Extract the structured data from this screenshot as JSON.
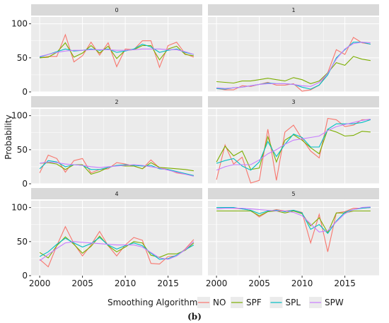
{
  "chart_data": {
    "type": "line",
    "ylabel": "Probability",
    "xlabel": "",
    "ylim": [
      0,
      110
    ],
    "xlim": [
      1999,
      2019
    ],
    "grid": true,
    "legend_position": "bottom",
    "legend_title": "Smoothing Algorithm",
    "caption": "(b)",
    "x_ticks": [
      2000,
      2005,
      2010,
      2015
    ],
    "y_ticks": [
      0,
      50,
      100
    ],
    "x": [
      2000,
      2001,
      2002,
      2003,
      2004,
      2005,
      2006,
      2007,
      2008,
      2009,
      2010,
      2011,
      2012,
      2013,
      2014,
      2015,
      2016,
      2017,
      2018
    ],
    "colors": {
      "NO": "#F8766D",
      "SPF": "#7CAE00",
      "SPL": "#00BFC4",
      "SPW": "#C77CFF"
    },
    "series_names": [
      "NO",
      "SPF",
      "SPL",
      "SPW"
    ],
    "panels": [
      {
        "label": "0",
        "series": [
          {
            "name": "NO",
            "values": [
              50,
              52,
              52,
              84,
              44,
              53,
              73,
              54,
              72,
              37,
              63,
              62,
              75,
              75,
              36,
              68,
              73,
              56,
              51
            ]
          },
          {
            "name": "SPF",
            "values": [
              50,
              51,
              58,
              72,
              51,
              57,
              68,
              57,
              67,
              49,
              61,
              62,
              68,
              68,
              47,
              63,
              67,
              55,
              53
            ]
          },
          {
            "name": "SPL",
            "values": [
              51,
              55,
              59,
              63,
              60,
              61,
              63,
              61,
              63,
              58,
              60,
              63,
              70,
              66,
              58,
              61,
              63,
              58,
              55
            ]
          },
          {
            "name": "SPW",
            "values": [
              52,
              55,
              58,
              60,
              61,
              61,
              62,
              62,
              62,
              61,
              61,
              62,
              63,
              63,
              63,
              62,
              62,
              59,
              55
            ]
          }
        ]
      },
      {
        "label": "1",
        "series": [
          {
            "name": "NO",
            "values": [
              5,
              3,
              3,
              9,
              8,
              11,
              14,
              10,
              10,
              12,
              1,
              3,
              10,
              28,
              62,
              55,
              80,
              72,
              70
            ]
          },
          {
            "name": "SPF",
            "values": [
              15,
              14,
              13,
              16,
              16,
              18,
              20,
              18,
              16,
              21,
              18,
              12,
              16,
              28,
              43,
              39,
              52,
              48,
              46
            ]
          },
          {
            "name": "SPL",
            "values": [
              5,
              4,
              6,
              7,
              9,
              11,
              13,
              12,
              12,
              11,
              7,
              4,
              10,
              25,
              50,
              62,
              73,
              73,
              70
            ]
          },
          {
            "name": "SPW",
            "values": [
              6,
              5,
              6,
              7,
              9,
              11,
              12,
              12,
              12,
              11,
              9,
              8,
              14,
              27,
              48,
              63,
              71,
              73,
              72
            ]
          }
        ]
      },
      {
        "label": "2",
        "series": [
          {
            "name": "NO",
            "values": [
              16,
              42,
              37,
              17,
              34,
              37,
              16,
              21,
              22,
              31,
              29,
              26,
              22,
              35,
              23,
              21,
              16,
              14,
              12
            ]
          },
          {
            "name": "SPF",
            "values": [
              30,
              31,
              29,
              21,
              28,
              28,
              14,
              18,
              24,
              27,
              26,
              26,
              22,
              31,
              24,
              23,
              22,
              21,
              19
            ]
          },
          {
            "name": "SPL",
            "values": [
              22,
              34,
              32,
              25,
              28,
              27,
              21,
              21,
              24,
              27,
              28,
              27,
              26,
              27,
              22,
              21,
              18,
              15,
              12
            ]
          },
          {
            "name": "SPW",
            "values": [
              30,
              32,
              31,
              29,
              28,
              27,
              25,
              24,
              25,
              26,
              27,
              28,
              27,
              25,
              23,
              20,
              17,
              14,
              11
            ]
          }
        ]
      },
      {
        "label": "3",
        "series": [
          {
            "name": "NO",
            "values": [
              6,
              57,
              29,
              39,
              1,
              5,
              80,
              5,
              76,
              86,
              66,
              48,
              38,
              96,
              94,
              84,
              86,
              94,
              94
            ]
          },
          {
            "name": "SPF",
            "values": [
              32,
              55,
              41,
              48,
              21,
              23,
              69,
              32,
              64,
              72,
              64,
              53,
              44,
              80,
              76,
              70,
              71,
              77,
              76
            ]
          },
          {
            "name": "SPL",
            "values": [
              30,
              34,
              37,
              26,
              20,
              32,
              62,
              40,
              58,
              73,
              68,
              54,
              54,
              80,
              88,
              88,
              88,
              90,
              94
            ]
          },
          {
            "name": "SPW",
            "values": [
              20,
              25,
              28,
              28,
              28,
              35,
              44,
              50,
              58,
              64,
              66,
              68,
              70,
              78,
              84,
              87,
              90,
              93,
              95
            ]
          }
        ]
      },
      {
        "label": "4",
        "series": [
          {
            "name": "NO",
            "values": [
              24,
              13,
              44,
              72,
              47,
              29,
              45,
              65,
              44,
              29,
              45,
              56,
              52,
              18,
              17,
              28,
              29,
              39,
              53
            ]
          },
          {
            "name": "SPF",
            "values": [
              34,
              26,
              44,
              57,
              46,
              33,
              43,
              58,
              44,
              35,
              42,
              50,
              48,
              30,
              27,
              32,
              32,
              37,
              48
            ]
          },
          {
            "name": "SPL",
            "values": [
              28,
              35,
              46,
              55,
              48,
              42,
              47,
              56,
              45,
              39,
              44,
              48,
              44,
              33,
              24,
              25,
              30,
              38,
              45
            ]
          },
          {
            "name": "SPW",
            "values": [
              22,
              31,
              40,
              48,
              50,
              49,
              48,
              47,
              46,
              45,
              45,
              45,
              42,
              34,
              26,
              24,
              29,
              38,
              50
            ]
          }
        ]
      },
      {
        "label": "5",
        "series": [
          {
            "name": "NO",
            "values": [
              100,
              100,
              99,
              98,
              96,
              86,
              94,
              97,
              95,
              96,
              93,
              48,
              90,
              35,
              92,
              94,
              99,
              99,
              100
            ]
          },
          {
            "name": "SPF",
            "values": [
              95,
              95,
              95,
              95,
              95,
              88,
              94,
              95,
              92,
              95,
              91,
              73,
              85,
              63,
              92,
              92,
              95,
              95,
              95
            ]
          },
          {
            "name": "SPL",
            "values": [
              100,
              100,
              100,
              98,
              96,
              91,
              95,
              96,
              94,
              96,
              92,
              68,
              75,
              62,
              80,
              93,
              97,
              99,
              100
            ]
          },
          {
            "name": "SPW",
            "values": [
              98,
              99,
              99,
              99,
              98,
              97,
              96,
              95,
              95,
              93,
              88,
              76,
              64,
              66,
              79,
              91,
              97,
              100,
              101
            ]
          }
        ]
      }
    ]
  }
}
